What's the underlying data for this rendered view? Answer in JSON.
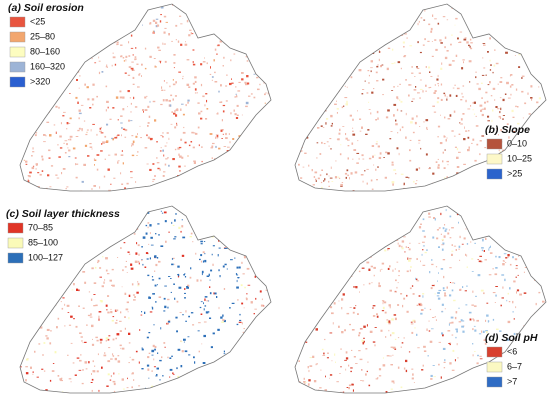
{
  "panels": [
    {
      "title": "(a) Soil erosion",
      "legend": [
        {
          "label": "<25",
          "color": "#e8553f"
        },
        {
          "label": "25–80",
          "color": "#f2a66e"
        },
        {
          "label": "80–160",
          "color": "#fdfdc0"
        },
        {
          "label": "160–320",
          "color": "#9db4d6"
        },
        {
          "label": ">320",
          "color": "#2a5fd0"
        }
      ]
    },
    {
      "title": "(b) Slope",
      "legend": [
        {
          "label": "0–10",
          "color": "#b5533c"
        },
        {
          "label": "10–25",
          "color": "#fdf8c8"
        },
        {
          "label": ">25",
          "color": "#2b63cc"
        }
      ]
    },
    {
      "title": "(c) Soil layer thickness",
      "legend": [
        {
          "label": "70–85",
          "color": "#e03426"
        },
        {
          "label": "85–100",
          "color": "#fafab8"
        },
        {
          "label": "100–127",
          "color": "#2c6fb8"
        }
      ]
    },
    {
      "title": "(d) Soil pH",
      "legend": [
        {
          "label": "<6",
          "color": "#d8402e"
        },
        {
          "label": "6–7",
          "color": "#fbf8c2"
        },
        {
          "label": ">7",
          "color": "#2f6cc4"
        }
      ]
    }
  ]
}
